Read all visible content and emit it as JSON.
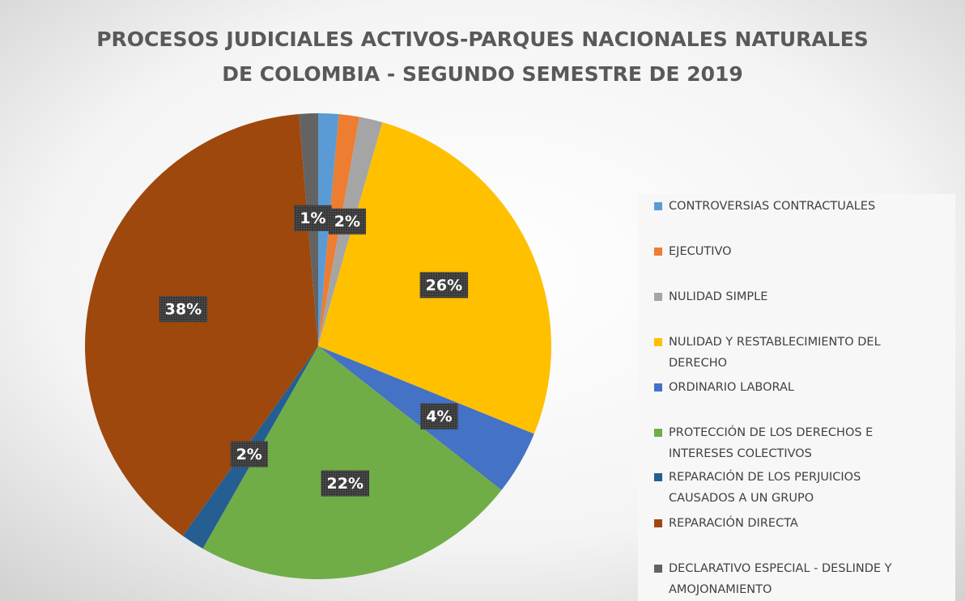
{
  "chart_data": {
    "type": "pie",
    "title": [
      "PROCESOS JUDICIALES ACTIVOS-PARQUES NACIONALES NATURALES",
      "DE COLOMBIA - SEGUNDO SEMESTRE DE 2019"
    ],
    "categories": [
      "CONTROVERSIAS CONTRACTUALES",
      "EJECUTIVO",
      "NULIDAD SIMPLE",
      "NULIDAD Y RESTABLECIMIENTO DEL DERECHO",
      "ORDINARIO LABORAL",
      "PROTECCIÓN DE LOS DERECHOS E INTERESES COLECTIVOS",
      "REPARACIÓN DE LOS PERJUICIOS CAUSADOS A UN GRUPO",
      "REPARACIÓN DIRECTA",
      "DECLARATIVO ESPECIAL - DESLINDE Y AMOJONAMIENTO"
    ],
    "values": [
      1.4,
      1.4,
      1.6,
      26.4,
      4.4,
      22.4,
      1.6,
      38.4,
      1.3
    ],
    "value_labels": [
      null,
      null,
      "2%",
      "26%",
      "4%",
      "22%",
      "2%",
      "38%",
      "1%"
    ],
    "colors": [
      "#5b9bd5",
      "#ed7d31",
      "#a5a5a5",
      "#ffc000",
      "#4472c4",
      "#70ad47",
      "#255e91",
      "#9e480e",
      "#636363"
    ],
    "legend": "right"
  }
}
